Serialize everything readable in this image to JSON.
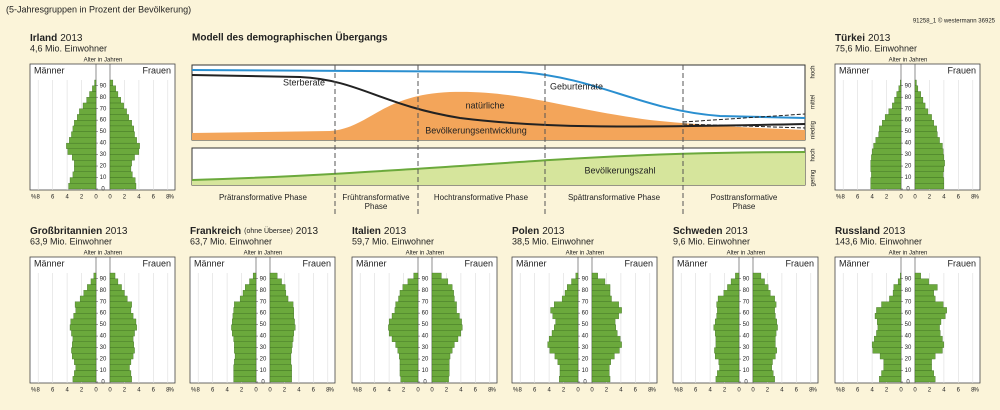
{
  "caption": "(5-Jahresgruppen in Prozent der Bevölkerung)",
  "credit": "91258_1  © westermann  36925",
  "model": {
    "title": "Modell des demographischen Übergangs",
    "death": "Sterberate",
    "birth": "Geburtenrate",
    "natural": [
      "natürliche",
      "Bevölkerungsentwicklung"
    ],
    "population": "Bevölkerungszahl",
    "phases": [
      [
        "Prätransformative Phase"
      ],
      [
        "Frühtransformative",
        "Phase"
      ],
      [
        "Hochtransformative Phase"
      ],
      [
        "Spättransformative Phase"
      ],
      [
        "Posttransformative",
        "Phase"
      ]
    ],
    "scale_top": [
      "hoch",
      "mittel",
      "niedrig"
    ],
    "scale_bottom": [
      "hoch",
      "gering"
    ]
  },
  "chart_data": [
    {
      "type": "pyramid",
      "title": "Irland",
      "year": "2013",
      "subtitle": "4,6 Mio. Einwohner",
      "y_label": "Alter in Jahren",
      "x_unit": "%",
      "ages": [
        0,
        5,
        10,
        15,
        20,
        25,
        30,
        35,
        40,
        45,
        50,
        55,
        60,
        65,
        70,
        75,
        80,
        85,
        90
      ],
      "ylim": [
        0,
        95
      ],
      "yticks": [
        0,
        10,
        20,
        30,
        40,
        50,
        60,
        70,
        80,
        90
      ],
      "xlim": [
        0,
        9
      ],
      "xticks": [
        0,
        2,
        4,
        6,
        8
      ],
      "series": [
        {
          "name": "Männer",
          "color": "#6ba93c",
          "values": [
            3.8,
            3.6,
            3.2,
            3.0,
            3.0,
            3.3,
            3.9,
            4.1,
            3.7,
            3.4,
            3.2,
            3.0,
            2.6,
            2.3,
            1.8,
            1.3,
            0.9,
            0.5,
            0.2
          ]
        },
        {
          "name": "Frauen",
          "color": "#6ba93c",
          "values": [
            3.6,
            3.5,
            3.1,
            2.9,
            3.0,
            3.4,
            4.0,
            4.1,
            3.7,
            3.4,
            3.3,
            3.0,
            2.6,
            2.3,
            1.9,
            1.5,
            1.1,
            0.8,
            0.4
          ]
        }
      ]
    },
    {
      "type": "pyramid",
      "title": "Türkei",
      "year": "2013",
      "subtitle": "75,6 Mio. Einwohner",
      "y_label": "Alter in Jahren",
      "x_unit": "%",
      "ages": [
        0,
        5,
        10,
        15,
        20,
        25,
        30,
        35,
        40,
        45,
        50,
        55,
        60,
        65,
        70,
        75,
        80,
        85,
        90
      ],
      "ylim": [
        0,
        95
      ],
      "yticks": [
        0,
        10,
        20,
        30,
        40,
        50,
        60,
        70,
        80,
        90
      ],
      "xlim": [
        0,
        9
      ],
      "xticks": [
        0,
        2,
        4,
        6,
        8
      ],
      "series": [
        {
          "name": "Männer",
          "color": "#6ba93c",
          "values": [
            4.2,
            4.2,
            4.1,
            4.2,
            4.2,
            4.1,
            4.0,
            3.8,
            3.5,
            3.1,
            3.0,
            2.6,
            2.2,
            1.7,
            1.2,
            0.9,
            0.6,
            0.3,
            0.1
          ]
        },
        {
          "name": "Frauen",
          "color": "#6ba93c",
          "values": [
            4.0,
            4.0,
            3.9,
            4.0,
            4.1,
            4.0,
            3.9,
            3.8,
            3.4,
            3.1,
            3.0,
            2.6,
            2.3,
            1.8,
            1.4,
            1.1,
            0.8,
            0.4,
            0.2
          ]
        }
      ]
    },
    {
      "type": "pyramid",
      "title": "Großbritannien",
      "year": "2013",
      "subtitle": "63,9 Mio. Einwohner",
      "y_label": "Alter in Jahren",
      "x_unit": "%",
      "ages": [
        0,
        5,
        10,
        15,
        20,
        25,
        30,
        35,
        40,
        45,
        50,
        55,
        60,
        65,
        70,
        75,
        80,
        85,
        90
      ],
      "ylim": [
        0,
        95
      ],
      "yticks": [
        0,
        10,
        20,
        30,
        40,
        50,
        60,
        70,
        80,
        90
      ],
      "xlim": [
        0,
        9
      ],
      "xticks": [
        0,
        2,
        4,
        6,
        8
      ],
      "series": [
        {
          "name": "Männer",
          "color": "#6ba93c",
          "values": [
            3.2,
            3.0,
            2.8,
            3.0,
            3.3,
            3.4,
            3.3,
            3.2,
            3.4,
            3.6,
            3.5,
            3.1,
            2.8,
            2.9,
            2.2,
            1.7,
            1.2,
            0.7,
            0.3
          ]
        },
        {
          "name": "Frauen",
          "color": "#6ba93c",
          "values": [
            3.0,
            2.9,
            2.7,
            2.9,
            3.2,
            3.4,
            3.3,
            3.2,
            3.4,
            3.7,
            3.6,
            3.2,
            2.9,
            3.0,
            2.4,
            2.0,
            1.6,
            1.1,
            0.7
          ]
        }
      ]
    },
    {
      "type": "pyramid",
      "title": "Frankreich",
      "title_note": "(ohne Übersee)",
      "year": "2013",
      "subtitle": "63,7 Mio. Einwohner",
      "y_label": "Alter in Jahren",
      "x_unit": "%",
      "ages": [
        0,
        5,
        10,
        15,
        20,
        25,
        30,
        35,
        40,
        45,
        50,
        55,
        60,
        65,
        70,
        75,
        80,
        85,
        90
      ],
      "ylim": [
        0,
        95
      ],
      "yticks": [
        0,
        10,
        20,
        30,
        40,
        50,
        60,
        70,
        80,
        90
      ],
      "xlim": [
        0,
        9
      ],
      "xticks": [
        0,
        2,
        4,
        6,
        8
      ],
      "series": [
        {
          "name": "Männer",
          "color": "#6ba93c",
          "values": [
            3.1,
            3.1,
            3.1,
            3.0,
            2.9,
            3.0,
            3.0,
            3.1,
            3.3,
            3.4,
            3.3,
            3.2,
            3.1,
            3.0,
            2.2,
            1.8,
            1.5,
            0.9,
            0.4
          ]
        },
        {
          "name": "Frauen",
          "color": "#6ba93c",
          "values": [
            3.0,
            3.0,
            3.0,
            2.9,
            2.9,
            3.0,
            3.1,
            3.2,
            3.3,
            3.5,
            3.4,
            3.3,
            3.3,
            3.2,
            2.5,
            2.2,
            2.1,
            1.6,
            1.0
          ]
        }
      ]
    },
    {
      "type": "pyramid",
      "title": "Italien",
      "year": "2013",
      "subtitle": "59,7 Mio. Einwohner",
      "y_label": "Alter in Jahren",
      "x_unit": "%",
      "ages": [
        0,
        5,
        10,
        15,
        20,
        25,
        30,
        35,
        40,
        45,
        50,
        55,
        60,
        65,
        70,
        75,
        80,
        85,
        90
      ],
      "ylim": [
        0,
        95
      ],
      "yticks": [
        0,
        10,
        20,
        30,
        40,
        50,
        60,
        70,
        80,
        90
      ],
      "xlim": [
        0,
        9
      ],
      "xticks": [
        0,
        2,
        4,
        6,
        8
      ],
      "series": [
        {
          "name": "Männer",
          "color": "#6ba93c",
          "values": [
            2.4,
            2.5,
            2.5,
            2.5,
            2.6,
            2.8,
            3.1,
            3.6,
            4.0,
            4.1,
            4.0,
            3.6,
            3.2,
            3.1,
            2.7,
            2.5,
            2.1,
            1.4,
            0.6
          ]
        },
        {
          "name": "Frauen",
          "color": "#6ba93c",
          "values": [
            2.3,
            2.4,
            2.4,
            2.4,
            2.5,
            2.8,
            3.1,
            3.6,
            4.0,
            4.2,
            4.1,
            3.8,
            3.4,
            3.4,
            3.1,
            3.0,
            2.8,
            2.2,
            1.3
          ]
        }
      ]
    },
    {
      "type": "pyramid",
      "title": "Polen",
      "year": "2013",
      "subtitle": "38,5 Mio. Einwohner",
      "y_label": "Alter in Jahren",
      "x_unit": "%",
      "ages": [
        0,
        5,
        10,
        15,
        20,
        25,
        30,
        35,
        40,
        45,
        50,
        55,
        60,
        65,
        70,
        75,
        80,
        85,
        90
      ],
      "ylim": [
        0,
        95
      ],
      "yticks": [
        0,
        10,
        20,
        30,
        40,
        50,
        60,
        70,
        80,
        90
      ],
      "xlim": [
        0,
        9
      ],
      "xticks": [
        0,
        2,
        4,
        6,
        8
      ],
      "series": [
        {
          "name": "Männer",
          "color": "#6ba93c",
          "values": [
            2.6,
            2.5,
            2.5,
            2.8,
            3.2,
            3.9,
            4.2,
            4.0,
            3.6,
            3.3,
            3.1,
            3.5,
            3.8,
            3.3,
            2.2,
            1.8,
            1.5,
            0.9,
            0.3
          ]
        },
        {
          "name": "Frauen",
          "color": "#6ba93c",
          "values": [
            2.5,
            2.4,
            2.4,
            2.6,
            3.1,
            3.8,
            4.1,
            3.9,
            3.5,
            3.3,
            3.2,
            3.7,
            4.1,
            3.7,
            2.7,
            2.5,
            2.5,
            1.8,
            0.8
          ]
        }
      ]
    },
    {
      "type": "pyramid",
      "title": "Schweden",
      "year": "2013",
      "subtitle": "9,6 Mio. Einwohner",
      "y_label": "Alter in Jahren",
      "x_unit": "%",
      "ages": [
        0,
        5,
        10,
        15,
        20,
        25,
        30,
        35,
        40,
        45,
        50,
        55,
        60,
        65,
        70,
        75,
        80,
        85,
        90
      ],
      "ylim": [
        0,
        95
      ],
      "yticks": [
        0,
        10,
        20,
        30,
        40,
        50,
        60,
        70,
        80,
        90
      ],
      "xlim": [
        0,
        9
      ],
      "xticks": [
        0,
        2,
        4,
        6,
        8
      ],
      "series": [
        {
          "name": "Männer",
          "color": "#6ba93c",
          "values": [
            3.2,
            3.0,
            2.7,
            2.8,
            3.3,
            3.4,
            3.2,
            3.2,
            3.3,
            3.5,
            3.3,
            3.1,
            3.0,
            3.1,
            2.9,
            2.1,
            1.6,
            1.1,
            0.5
          ]
        },
        {
          "name": "Frauen",
          "color": "#6ba93c",
          "values": [
            3.0,
            2.8,
            2.6,
            2.7,
            3.1,
            3.3,
            3.1,
            3.1,
            3.2,
            3.4,
            3.3,
            3.1,
            3.0,
            3.2,
            3.0,
            2.4,
            2.1,
            1.6,
            1.1
          ]
        }
      ]
    },
    {
      "type": "pyramid",
      "title": "Russland",
      "year": "2013",
      "subtitle": "143,6 Mio. Einwohner",
      "y_label": "Alter in Jahren",
      "x_unit": "%",
      "ages": [
        0,
        5,
        10,
        15,
        20,
        25,
        30,
        35,
        40,
        45,
        50,
        55,
        60,
        65,
        70,
        75,
        80,
        85,
        90
      ],
      "ylim": [
        0,
        95
      ],
      "yticks": [
        0,
        10,
        20,
        30,
        40,
        50,
        60,
        70,
        80,
        90
      ],
      "xlim": [
        0,
        9
      ],
      "xticks": [
        0,
        2,
        4,
        6,
        8
      ],
      "series": [
        {
          "name": "Männer",
          "color": "#6ba93c",
          "values": [
            3.0,
            2.7,
            2.4,
            2.4,
            2.9,
            3.9,
            4.0,
            3.7,
            3.4,
            3.2,
            3.3,
            3.6,
            3.4,
            2.7,
            1.6,
            1.1,
            1.0,
            0.4,
            0.1
          ]
        },
        {
          "name": "Frauen",
          "color": "#6ba93c",
          "values": [
            2.8,
            2.6,
            2.3,
            2.3,
            2.8,
            3.8,
            4.0,
            3.8,
            3.5,
            3.4,
            3.6,
            4.2,
            4.4,
            3.9,
            2.8,
            2.6,
            3.1,
            1.9,
            0.8
          ]
        }
      ]
    }
  ]
}
